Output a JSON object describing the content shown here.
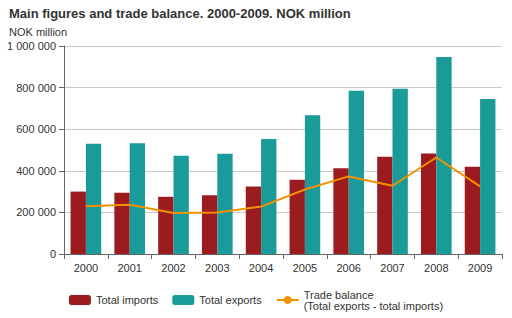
{
  "chart_data": {
    "type": "bar",
    "title": "Main figures and trade balance. 2000-2009. NOK million",
    "y_label": "NOK million",
    "categories": [
      "2000",
      "2001",
      "2002",
      "2003",
      "2004",
      "2005",
      "2006",
      "2007",
      "2008",
      "2009"
    ],
    "series": [
      {
        "name": "Total imports",
        "type": "bar",
        "color": "#9b1b1f",
        "values": [
          300000,
          295000,
          275000,
          282000,
          325000,
          357000,
          412000,
          467000,
          483000,
          420000
        ]
      },
      {
        "name": "Total exports",
        "type": "bar",
        "color": "#1a9a99",
        "values": [
          530000,
          533000,
          472000,
          482000,
          553000,
          667000,
          785000,
          795000,
          947000,
          745000
        ]
      },
      {
        "name": "Trade balance\n(Total exports - total imports)",
        "type": "line",
        "color": "#f39200",
        "values": [
          230000,
          237000,
          197000,
          200000,
          228000,
          310000,
          373000,
          328000,
          464000,
          325000
        ]
      }
    ],
    "ylim": [
      0,
      1000000
    ],
    "yticks": [
      0,
      {
        "value": 200000,
        "label": "200 000"
      },
      {
        "value": 400000,
        "label": "400 000"
      },
      {
        "value": 600000,
        "label": "600 000"
      },
      {
        "value": 800000,
        "label": "800 000"
      },
      {
        "value": 1000000,
        "label": "1 000 000"
      }
    ],
    "grid": true,
    "legend": "bottom"
  }
}
